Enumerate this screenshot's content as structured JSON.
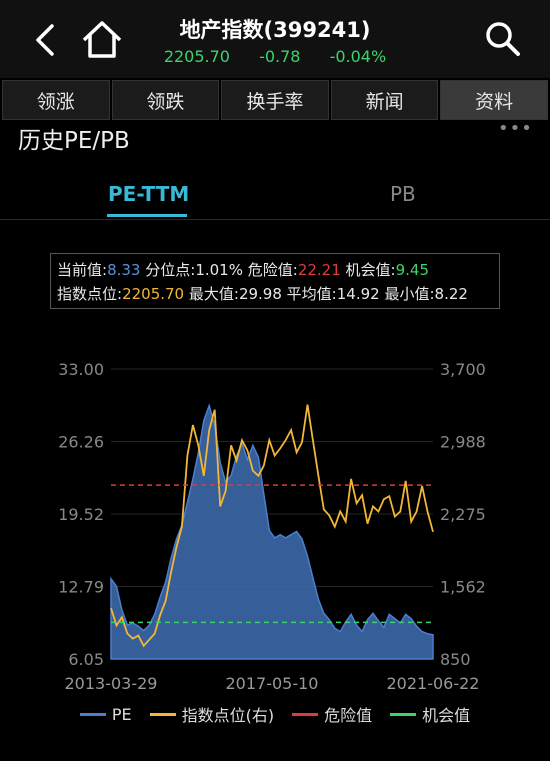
{
  "header": {
    "title": "地产指数(399241)",
    "price": "2205.70",
    "change": "-0.78",
    "change_pct": "-0.04%",
    "colors": {
      "quote": "#3cd36a"
    }
  },
  "tabs": [
    {
      "label": "领涨",
      "active": false
    },
    {
      "label": "领跌",
      "active": false
    },
    {
      "label": "换手率",
      "active": false
    },
    {
      "label": "新闻",
      "active": false
    },
    {
      "label": "资料",
      "active": true
    }
  ],
  "section": {
    "title": "历史PE/PB",
    "more": "•••"
  },
  "subtabs": {
    "pe": "PE-TTM",
    "pb": "PB"
  },
  "info": {
    "current_label": "当前值:",
    "current": "8.33",
    "percentile_label": "分位点:",
    "percentile": "1.01%",
    "danger_label": "危险值:",
    "danger": "22.21",
    "chance_label": "机会值:",
    "chance": "9.45",
    "index_label": "指数点位:",
    "index": "2205.70",
    "max_label": "最大值:",
    "max": "29.98",
    "avg_label": "平均值:",
    "avg": "14.92",
    "min_label": "最小值:",
    "min": "8.22"
  },
  "legend": {
    "pe": "PE",
    "index": "指数点位(右)",
    "danger": "危险值",
    "chance": "机会值"
  },
  "chart_data": {
    "type": "area",
    "x_labels": [
      "2013-03-29",
      "2017-05-10",
      "2021-06-22"
    ],
    "left_axis": {
      "ticks": [
        "33.00",
        "26.26",
        "19.52",
        "12.79",
        "6.05"
      ],
      "range": [
        6.05,
        33.0
      ]
    },
    "right_axis": {
      "ticks": [
        "3,700",
        "2,988",
        "2,275",
        "1,562",
        "850"
      ],
      "range": [
        850,
        3700
      ]
    },
    "series": [
      {
        "name": "PE",
        "color": "#4a7fd0",
        "values": [
          13.5,
          12.8,
          10.6,
          9.2,
          9.4,
          9.1,
          8.7,
          9.2,
          10.2,
          11.8,
          13.2,
          15.4,
          17.2,
          18.5,
          20.6,
          22.8,
          25.2,
          28.2,
          29.6,
          27.8,
          24.3,
          22.5,
          23.1,
          24.9,
          26.1,
          24.6,
          25.9,
          24.8,
          21.4,
          18.0,
          17.3,
          17.6,
          17.3,
          17.6,
          17.9,
          17.2,
          15.6,
          13.6,
          11.6,
          10.3,
          9.7,
          8.9,
          8.6,
          9.5,
          10.2,
          9.2,
          8.6,
          9.7,
          10.3,
          9.6,
          9.0,
          10.2,
          9.8,
          9.4,
          10.2,
          9.8,
          9.1,
          8.6,
          8.4,
          8.3
        ]
      },
      {
        "name": "指数点位(右)",
        "color": "#f2b736",
        "values": [
          1350,
          1180,
          1260,
          1100,
          1050,
          1080,
          980,
          1040,
          1100,
          1280,
          1420,
          1700,
          1950,
          2150,
          2850,
          3150,
          2950,
          2650,
          3100,
          3300,
          2350,
          2500,
          2950,
          2800,
          3000,
          2900,
          2700,
          2650,
          2750,
          3000,
          2850,
          2920,
          3000,
          3100,
          2880,
          2980,
          3350,
          3000,
          2650,
          2320,
          2260,
          2150,
          2300,
          2200,
          2620,
          2380,
          2460,
          2180,
          2350,
          2300,
          2420,
          2450,
          2250,
          2300,
          2600,
          2200,
          2300,
          2550,
          2300,
          2100
        ]
      }
    ],
    "reference_lines": [
      {
        "name": "危险值",
        "value": 22.21,
        "color": "#e03a3a"
      },
      {
        "name": "机会值",
        "value": 9.45,
        "color": "#3cd36a"
      }
    ]
  }
}
